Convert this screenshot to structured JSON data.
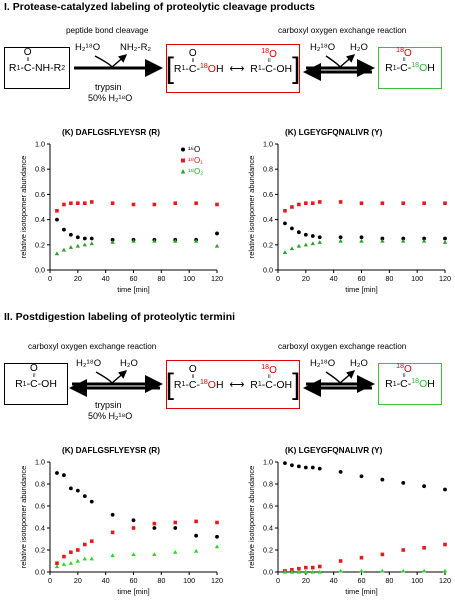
{
  "section1": {
    "heading": "I. Protease-catalyzed labeling of proteolytic cleavage products",
    "cleavage_caption": "peptide bond cleavage",
    "exchange_caption": "carboxyl oxygen exchange reaction",
    "water18": "H₂¹⁸O",
    "amine": "NH₂-R₂",
    "trypsin": "trypsin",
    "condition": "50% H₂¹⁸O",
    "water16": "H₂O"
  },
  "section2": {
    "heading": "II. Postdigestion labeling of proteolytic termini",
    "exchange_caption_left": "carboxyl oxygen exchange reaction",
    "exchange_caption_right": "carboxyl oxygen exchange reaction",
    "water18": "H₂¹⁸O",
    "water16": "H₂O",
    "trypsin": "trypsin",
    "condition": "50% H₂¹⁸O"
  },
  "legend": {
    "o16": "¹⁶O",
    "o18_1": "¹⁸O₁",
    "o18_2": "¹⁸O₂"
  },
  "colors": {
    "o16": "#000000",
    "o18_1": "#e41a1c",
    "o18_2": "#2ca02c",
    "o18_2_bottom": "#22dd22"
  },
  "chart_data": [
    {
      "type": "scatter",
      "title": "(K) DAFLGSFLYEYSR (R)",
      "xlabel": "time [min]",
      "ylabel": "relative isotopomer abundance",
      "xlim": [
        0,
        120
      ],
      "ylim": [
        0,
        1.0
      ],
      "xticks": [
        0,
        20,
        40,
        60,
        80,
        100,
        120
      ],
      "yticks": [
        "0.0",
        "0.2",
        "0.4",
        "0.6",
        "0.8",
        "1.0"
      ],
      "legend_position": "top-right",
      "x": [
        5,
        10,
        15,
        20,
        25,
        30,
        45,
        60,
        75,
        90,
        105,
        120
      ],
      "series": [
        {
          "name": "¹⁶O",
          "values": [
            0.4,
            0.32,
            0.28,
            0.26,
            0.25,
            0.25,
            0.24,
            0.24,
            0.24,
            0.24,
            0.24,
            0.29
          ]
        },
        {
          "name": "¹⁸O₁",
          "values": [
            0.47,
            0.52,
            0.53,
            0.53,
            0.53,
            0.54,
            0.53,
            0.52,
            0.52,
            0.53,
            0.53,
            0.52
          ]
        },
        {
          "name": "¹⁸O₂",
          "values": [
            0.13,
            0.16,
            0.18,
            0.19,
            0.2,
            0.21,
            0.22,
            0.23,
            0.23,
            0.23,
            0.23,
            0.19
          ]
        }
      ]
    },
    {
      "type": "scatter",
      "title": "(K) LGEYGFQNALIVR (Y)",
      "xlabel": "time [min]",
      "ylabel": "relative isotopomer abundance",
      "xlim": [
        0,
        120
      ],
      "ylim": [
        0,
        1.0
      ],
      "xticks": [
        0,
        20,
        40,
        60,
        80,
        100,
        120
      ],
      "yticks": [
        "0.0",
        "0.2",
        "0.4",
        "0.6",
        "0.8",
        "1.0"
      ],
      "x": [
        5,
        10,
        15,
        20,
        25,
        30,
        45,
        60,
        75,
        90,
        105,
        120
      ],
      "series": [
        {
          "name": "¹⁶O",
          "values": [
            0.37,
            0.33,
            0.3,
            0.28,
            0.27,
            0.26,
            0.26,
            0.26,
            0.25,
            0.25,
            0.25,
            0.25
          ]
        },
        {
          "name": "¹⁸O₁",
          "values": [
            0.47,
            0.5,
            0.52,
            0.53,
            0.53,
            0.54,
            0.54,
            0.53,
            0.53,
            0.53,
            0.53,
            0.53
          ]
        },
        {
          "name": "¹⁸O₂",
          "values": [
            0.14,
            0.17,
            0.19,
            0.2,
            0.21,
            0.22,
            0.23,
            0.23,
            0.23,
            0.23,
            0.23,
            0.22
          ]
        }
      ]
    },
    {
      "type": "scatter",
      "title": "(K) DAFLGSFLYEYSR (R)",
      "xlabel": "time [min]",
      "ylabel": "relative isotopomer abundance",
      "xlim": [
        0,
        120
      ],
      "ylim": [
        0,
        1.0
      ],
      "xticks": [
        0,
        20,
        40,
        60,
        80,
        100,
        120
      ],
      "yticks": [
        "0.0",
        "0.2",
        "0.4",
        "0.6",
        "0.8",
        "1.0"
      ],
      "x": [
        5,
        10,
        15,
        20,
        25,
        30,
        45,
        60,
        75,
        90,
        105,
        120
      ],
      "series": [
        {
          "name": "¹⁶O",
          "values": [
            0.9,
            0.88,
            0.76,
            0.74,
            0.69,
            0.64,
            0.52,
            0.47,
            0.4,
            0.4,
            0.33,
            0.32
          ]
        },
        {
          "name": "¹⁸O₁",
          "values": [
            0.08,
            0.14,
            0.18,
            0.2,
            0.25,
            0.28,
            0.36,
            0.4,
            0.44,
            0.45,
            0.46,
            0.45
          ]
        },
        {
          "name": "¹⁸O₂",
          "values": [
            0.05,
            0.07,
            0.08,
            0.1,
            0.12,
            0.12,
            0.15,
            0.16,
            0.16,
            0.18,
            0.19,
            0.23
          ]
        }
      ]
    },
    {
      "type": "scatter",
      "title": "(K) LGEYGFQNALIVR (Y)",
      "xlabel": "time [min]",
      "ylabel": "relative isotopomer abundance",
      "xlim": [
        0,
        120
      ],
      "ylim": [
        0,
        1.0
      ],
      "xticks": [
        0,
        20,
        40,
        60,
        80,
        100,
        120
      ],
      "yticks": [
        "0.0",
        "0.2",
        "0.4",
        "0.6",
        "0.8",
        "1.0"
      ],
      "x": [
        5,
        10,
        15,
        20,
        25,
        30,
        45,
        60,
        75,
        90,
        105,
        120
      ],
      "series": [
        {
          "name": "¹⁶O",
          "values": [
            0.99,
            0.97,
            0.96,
            0.95,
            0.95,
            0.94,
            0.91,
            0.87,
            0.84,
            0.81,
            0.78,
            0.75
          ]
        },
        {
          "name": "¹⁸O₁",
          "values": [
            0.01,
            0.02,
            0.03,
            0.04,
            0.04,
            0.05,
            0.1,
            0.13,
            0.16,
            0.2,
            0.22,
            0.25
          ]
        },
        {
          "name": "¹⁸O₂",
          "values": [
            0.0,
            0.0,
            0.0,
            0.0,
            0.0,
            0.0,
            0.01,
            0.01,
            0.01,
            0.01,
            0.01,
            0.01
          ]
        }
      ]
    }
  ]
}
